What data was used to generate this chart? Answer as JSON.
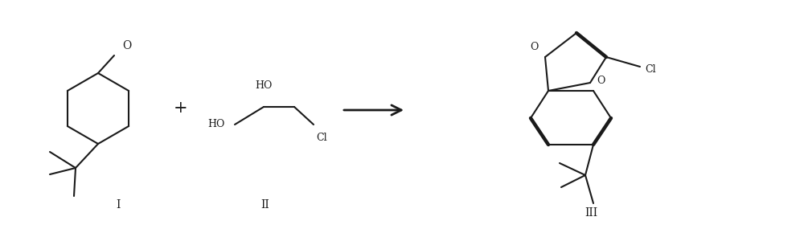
{
  "bg_color": "#ffffff",
  "line_color": "#1a1a1a",
  "lw": 1.5,
  "lw_bold": 3.2,
  "label_I": "I",
  "label_II": "II",
  "label_III": "III",
  "plus": "+",
  "O_label": "O",
  "HO_top": "HO",
  "HO_bot": "HO",
  "Cl_II": "Cl",
  "Cl_III": "Cl",
  "O_top_III": "O",
  "O_mid_III": "O",
  "fig_w": 10.0,
  "fig_h": 2.85,
  "dpi": 100
}
